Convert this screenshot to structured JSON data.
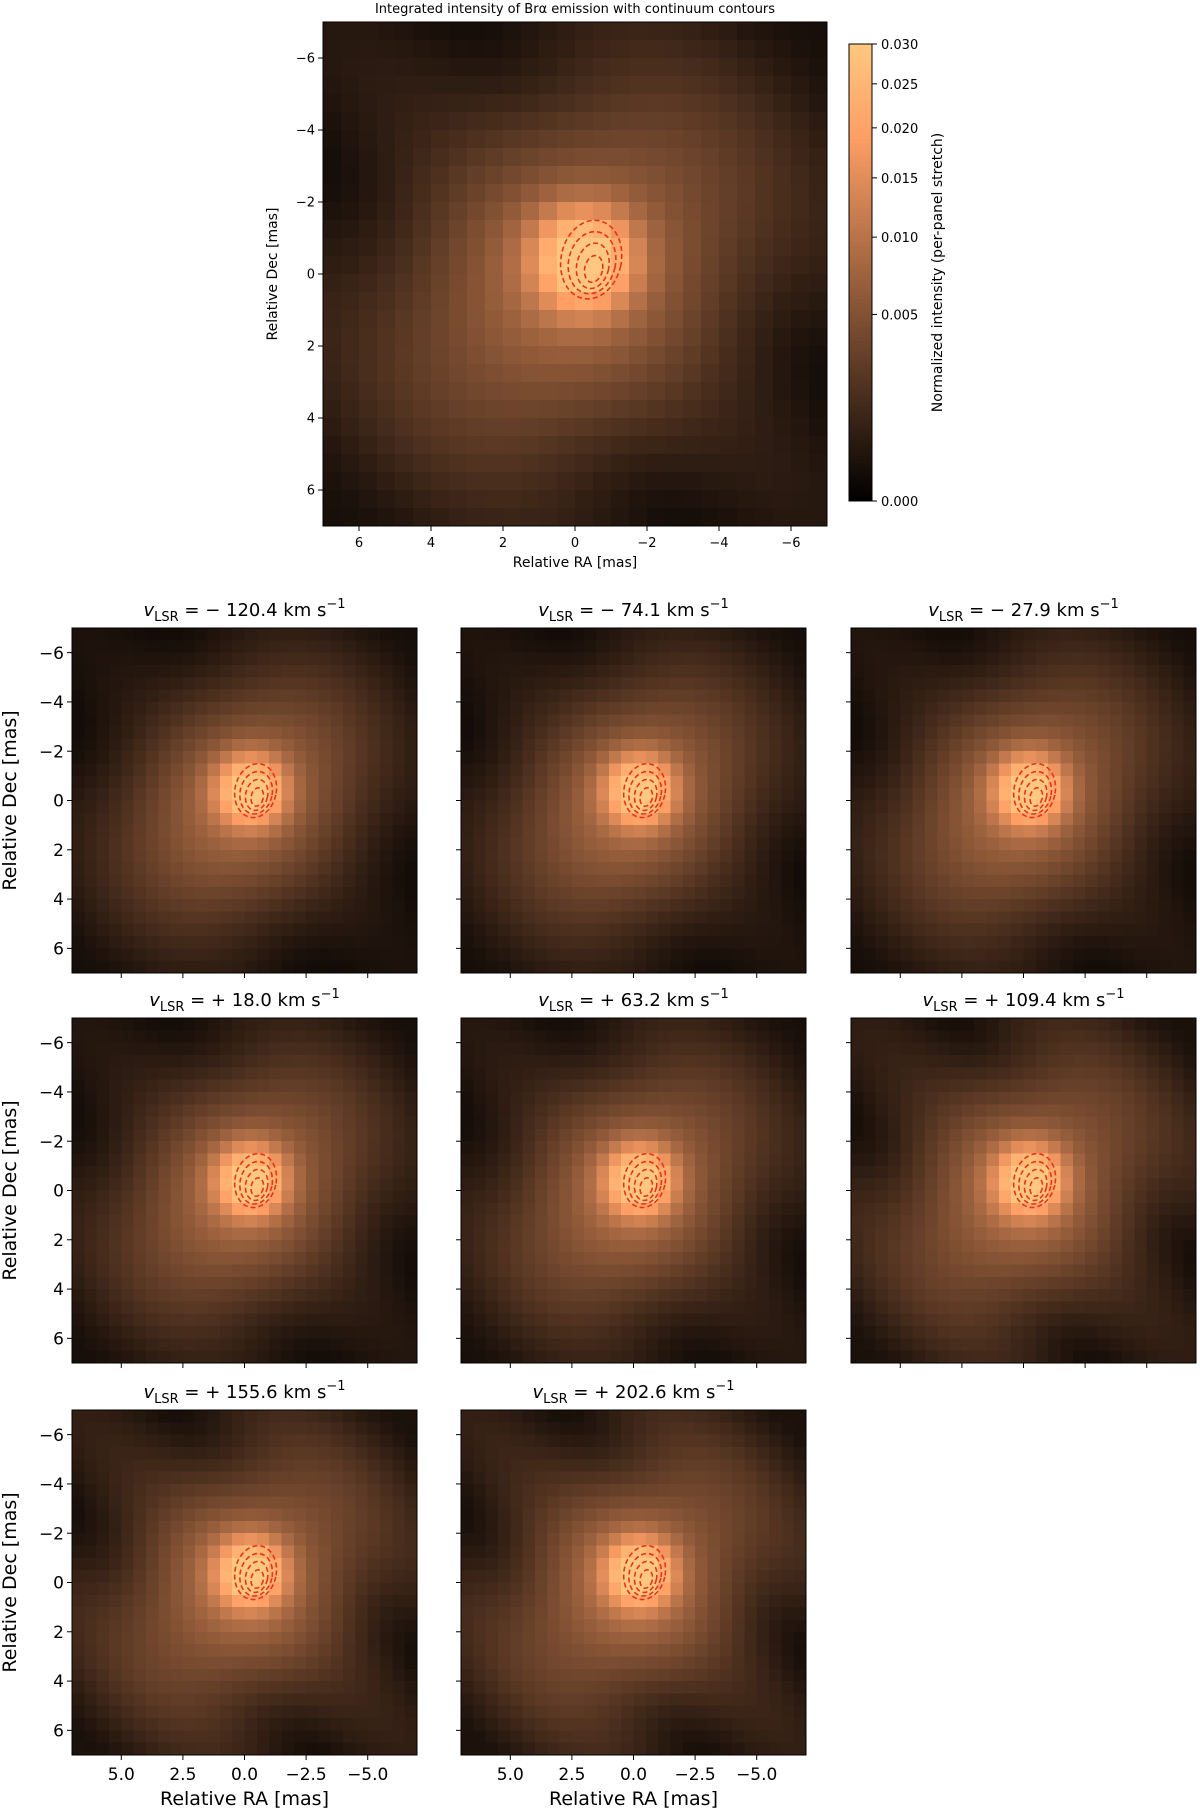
{
  "chart_data": {
    "type": "heatmap",
    "colormap": "copper",
    "contour_color": "#e8321e",
    "contour_style": "dashed",
    "main": {
      "title": "Integrated intensity of Brα emission with continuum contours",
      "xlabel": "Relative RA [mas]",
      "ylabel": "Relative Dec [mas]",
      "xlim": [
        7,
        -7
      ],
      "ylim": [
        -7,
        7
      ],
      "xticks": [
        "6",
        "4",
        "2",
        "0",
        "−2",
        "−4",
        "−6"
      ],
      "xtick_values": [
        6,
        4,
        2,
        0,
        -2,
        -4,
        -6
      ],
      "yticks": [
        "−6",
        "−4",
        "−2",
        "0",
        "2",
        "4",
        "6"
      ],
      "ytick_values": [
        -6,
        -4,
        -2,
        0,
        2,
        4,
        6
      ],
      "colorbar": {
        "label": "Normalized intensity (per-panel stretch)",
        "range": [
          0,
          0.03
        ],
        "scale": "sqrt",
        "ticks": [
          "0.000",
          "0.005",
          "0.010",
          "0.015",
          "0.020",
          "0.025",
          "0.030"
        ],
        "tick_values": [
          0,
          0.005,
          0.01,
          0.015,
          0.02,
          0.025,
          0.03
        ]
      }
    },
    "channels": {
      "xlabel": "Relative RA [mas]",
      "ylabel": "Relative Dec [mas]",
      "xlim": [
        7,
        -7
      ],
      "ylim": [
        -7,
        7
      ],
      "xticks": [
        "5.0",
        "2.5",
        "0.0",
        "−2.5",
        "−5.0"
      ],
      "xtick_values": [
        5,
        2.5,
        0,
        -2.5,
        -5
      ],
      "yticks": [
        "−6",
        "−4",
        "−2",
        "0",
        "2",
        "4",
        "6"
      ],
      "ytick_values": [
        -6,
        -4,
        -2,
        0,
        2,
        4,
        6
      ],
      "panels": [
        {
          "v_sign": "−",
          "v_value": "120.4",
          "unit": "km s",
          "exp": "−1",
          "stripe": 0.18
        },
        {
          "v_sign": "−",
          "v_value": "74.1",
          "unit": "km s",
          "exp": "−1",
          "stripe": 0.22
        },
        {
          "v_sign": "−",
          "v_value": "27.9",
          "unit": "km s",
          "exp": "−1",
          "stripe": 0.26
        },
        {
          "v_sign": "+",
          "v_value": "18.0",
          "unit": "km s",
          "exp": "−1",
          "stripe": 0.28
        },
        {
          "v_sign": "+",
          "v_value": "63.2",
          "unit": "km s",
          "exp": "−1",
          "stripe": 0.34
        },
        {
          "v_sign": "+",
          "v_value": "109.4",
          "unit": "km s",
          "exp": "−1",
          "stripe": 0.52
        },
        {
          "v_sign": "+",
          "v_value": "155.6",
          "unit": "km s",
          "exp": "−1",
          "stripe": 0.58
        },
        {
          "v_sign": "+",
          "v_value": "202.6",
          "unit": "km s",
          "exp": "−1",
          "stripe": 0.62
        }
      ]
    },
    "v_prefix": "v",
    "v_subscript": "LSR"
  }
}
